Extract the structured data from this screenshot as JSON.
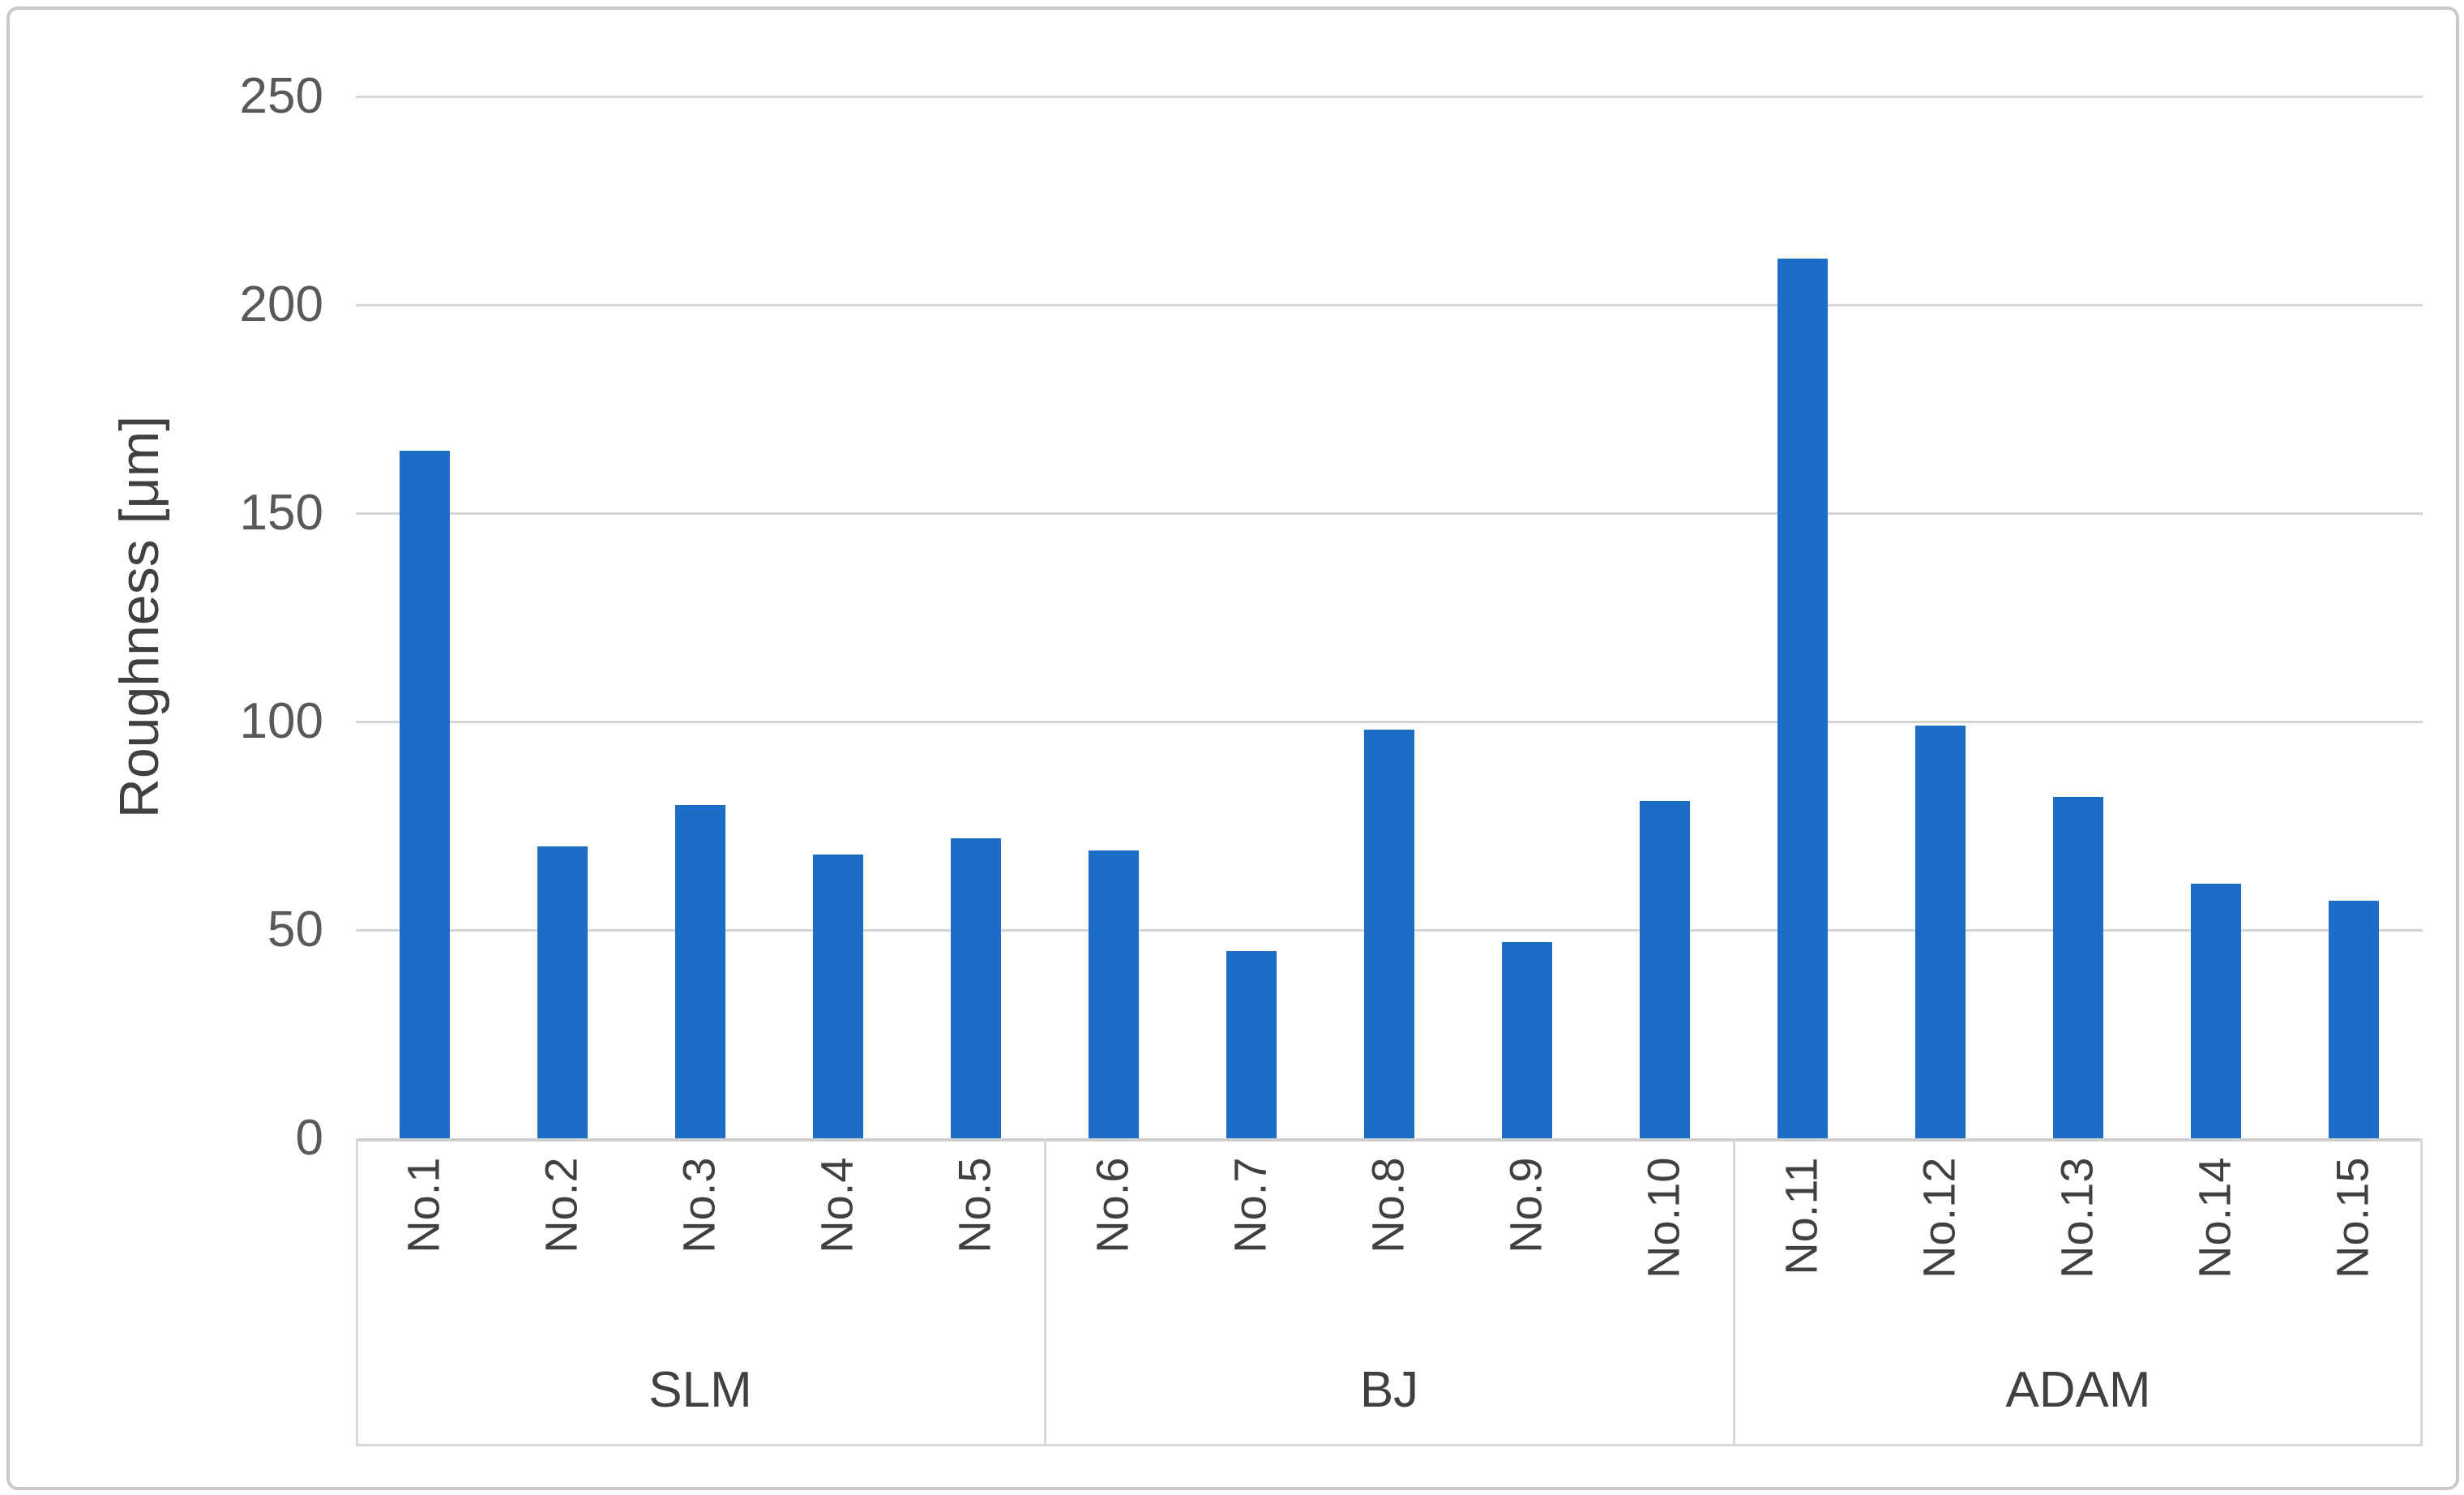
{
  "chart_data": {
    "type": "bar",
    "title": "",
    "xlabel": "",
    "ylabel": "Roughness [μm]",
    "ylim": [
      0,
      250
    ],
    "yticks": [
      0,
      50,
      100,
      150,
      200,
      250
    ],
    "grid": true,
    "legend_position": "none",
    "bar_color": "#1b6dc6",
    "categories": [
      "No.1",
      "No.2",
      "No.3",
      "No.4",
      "No.5",
      "No.6",
      "No.7",
      "No.8",
      "No.9",
      "No.10",
      "No.11",
      "No.12",
      "No.13",
      "No.14",
      "No.15"
    ],
    "values": [
      165,
      70,
      80,
      68,
      72,
      69,
      45,
      98,
      47,
      81,
      211,
      99,
      82,
      61,
      57
    ],
    "groups": [
      {
        "label": "SLM",
        "span": 5
      },
      {
        "label": "BJ",
        "span": 5
      },
      {
        "label": "ADAM",
        "span": 5
      }
    ]
  },
  "colors": {
    "bar": "#1b6dc6",
    "gridline": "#d5d5d5",
    "axis_text": "#595959",
    "frame_border": "#c9c9c9",
    "label_box_border": "#d9d9d9"
  }
}
